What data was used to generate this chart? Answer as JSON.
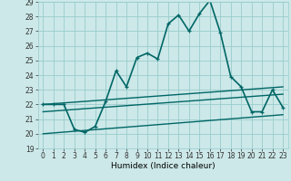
{
  "xlabel": "Humidex (Indice chaleur)",
  "xlim": [
    -0.5,
    23.5
  ],
  "ylim": [
    19,
    29
  ],
  "yticks": [
    19,
    20,
    21,
    22,
    23,
    24,
    25,
    26,
    27,
    28,
    29
  ],
  "xticks": [
    0,
    1,
    2,
    3,
    4,
    5,
    6,
    7,
    8,
    9,
    10,
    11,
    12,
    13,
    14,
    15,
    16,
    17,
    18,
    19,
    20,
    21,
    22,
    23
  ],
  "bg_color": "#cce8e8",
  "line_color": "#006666",
  "grid_color": "#99cccc",
  "series": [
    {
      "x": [
        0,
        1,
        2,
        3,
        4,
        5,
        6,
        7,
        8,
        9,
        10,
        11,
        12,
        13,
        14,
        15,
        16,
        17,
        18,
        19,
        20,
        21,
        22,
        23
      ],
      "y": [
        22.0,
        22.0,
        22.0,
        20.3,
        20.1,
        20.5,
        22.2,
        24.3,
        23.2,
        25.2,
        25.5,
        25.1,
        27.5,
        28.1,
        27.0,
        28.2,
        29.1,
        26.9,
        23.9,
        23.2,
        21.5,
        21.5,
        23.0,
        21.8
      ],
      "marker": true,
      "lw": 1.2
    },
    {
      "x": [
        0,
        23
      ],
      "y": [
        22.0,
        23.2
      ],
      "marker": false,
      "lw": 1.0
    },
    {
      "x": [
        0,
        23
      ],
      "y": [
        21.5,
        22.7
      ],
      "marker": false,
      "lw": 1.0
    },
    {
      "x": [
        0,
        23
      ],
      "y": [
        20.0,
        21.3
      ],
      "marker": false,
      "lw": 1.0
    }
  ]
}
